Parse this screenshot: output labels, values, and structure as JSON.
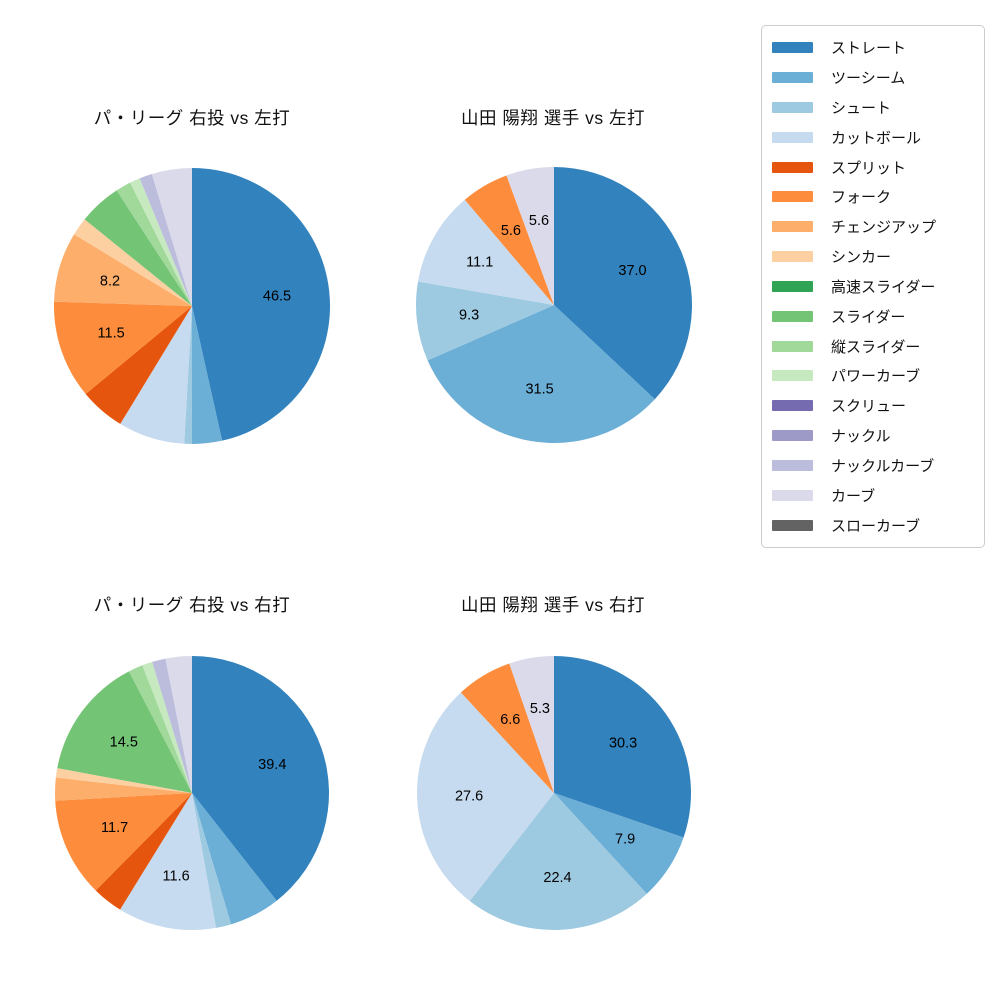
{
  "legend": {
    "position": "right",
    "items": [
      {
        "label": "ストレート",
        "color": "#3182bd"
      },
      {
        "label": "ツーシーム",
        "color": "#6baed6"
      },
      {
        "label": "シュート",
        "color": "#9ecae1"
      },
      {
        "label": "カットボール",
        "color": "#c6dbef"
      },
      {
        "label": "スプリット",
        "color": "#e6550d"
      },
      {
        "label": "フォーク",
        "color": "#fd8d3c"
      },
      {
        "label": "チェンジアップ",
        "color": "#fdae6b"
      },
      {
        "label": "シンカー",
        "color": "#fdd0a2"
      },
      {
        "label": "高速スライダー",
        "color": "#31a354"
      },
      {
        "label": "スライダー",
        "color": "#74c476"
      },
      {
        "label": "縦スライダー",
        "color": "#a1d99b"
      },
      {
        "label": "パワーカーブ",
        "color": "#c7e9c0"
      },
      {
        "label": "スクリュー",
        "color": "#756bb1"
      },
      {
        "label": "ナックル",
        "color": "#9e9ac8"
      },
      {
        "label": "ナックルカーブ",
        "color": "#bcbddc"
      },
      {
        "label": "カーブ",
        "color": "#dadaeb"
      },
      {
        "label": "スローカーブ",
        "color": "#636363"
      }
    ]
  },
  "chart_data": [
    {
      "type": "pie",
      "title": "パ・リーグ 右投 vs 左打",
      "start_angle": 90,
      "direction": "clockwise",
      "legend_position": "right",
      "slices": [
        {
          "pitch": "ストレート",
          "value": 46.5,
          "shown_label": "46.5"
        },
        {
          "pitch": "ツーシーム",
          "value": 3.5,
          "shown_label": ""
        },
        {
          "pitch": "シュート",
          "value": 0.9,
          "shown_label": ""
        },
        {
          "pitch": "カットボール",
          "value": 7.8,
          "shown_label": ""
        },
        {
          "pitch": "スプリット",
          "value": 5.3,
          "shown_label": ""
        },
        {
          "pitch": "フォーク",
          "value": 11.5,
          "shown_label": "11.5"
        },
        {
          "pitch": "チェンジアップ",
          "value": 8.2,
          "shown_label": "8.2"
        },
        {
          "pitch": "シンカー",
          "value": 2.1,
          "shown_label": ""
        },
        {
          "pitch": "スライダー",
          "value": 5.0,
          "shown_label": ""
        },
        {
          "pitch": "縦スライダー",
          "value": 1.8,
          "shown_label": ""
        },
        {
          "pitch": "パワーカーブ",
          "value": 1.2,
          "shown_label": ""
        },
        {
          "pitch": "ナックルカーブ",
          "value": 1.5,
          "shown_label": ""
        },
        {
          "pitch": "カーブ",
          "value": 4.7,
          "shown_label": ""
        }
      ]
    },
    {
      "type": "pie",
      "title": "山田 陽翔 選手 vs 左打",
      "start_angle": 90,
      "direction": "clockwise",
      "slices": [
        {
          "pitch": "ストレート",
          "value": 37.0,
          "shown_label": "37.0"
        },
        {
          "pitch": "ツーシーム",
          "value": 31.5,
          "shown_label": "31.5"
        },
        {
          "pitch": "シュート",
          "value": 9.3,
          "shown_label": "9.3"
        },
        {
          "pitch": "カットボール",
          "value": 11.1,
          "shown_label": "11.1"
        },
        {
          "pitch": "フォーク",
          "value": 5.6,
          "shown_label": "5.6"
        },
        {
          "pitch": "カーブ",
          "value": 5.6,
          "shown_label": "5.6"
        }
      ]
    },
    {
      "type": "pie",
      "title": "パ・リーグ 右投 vs 右打",
      "start_angle": 90,
      "direction": "clockwise",
      "slices": [
        {
          "pitch": "ストレート",
          "value": 39.4,
          "shown_label": "39.4"
        },
        {
          "pitch": "ツーシーム",
          "value": 6.0,
          "shown_label": ""
        },
        {
          "pitch": "シュート",
          "value": 1.8,
          "shown_label": ""
        },
        {
          "pitch": "カットボール",
          "value": 11.6,
          "shown_label": "11.6"
        },
        {
          "pitch": "スプリット",
          "value": 3.6,
          "shown_label": ""
        },
        {
          "pitch": "フォーク",
          "value": 11.7,
          "shown_label": "11.7"
        },
        {
          "pitch": "チェンジアップ",
          "value": 2.7,
          "shown_label": ""
        },
        {
          "pitch": "シンカー",
          "value": 1.1,
          "shown_label": ""
        },
        {
          "pitch": "スライダー",
          "value": 14.5,
          "shown_label": "14.5"
        },
        {
          "pitch": "縦スライダー",
          "value": 1.7,
          "shown_label": ""
        },
        {
          "pitch": "パワーカーブ",
          "value": 1.2,
          "shown_label": ""
        },
        {
          "pitch": "ナックルカーブ",
          "value": 1.6,
          "shown_label": ""
        },
        {
          "pitch": "カーブ",
          "value": 3.1,
          "shown_label": ""
        }
      ]
    },
    {
      "type": "pie",
      "title": "山田 陽翔 選手 vs 右打",
      "start_angle": 90,
      "direction": "clockwise",
      "slices": [
        {
          "pitch": "ストレート",
          "value": 30.3,
          "shown_label": "30.3"
        },
        {
          "pitch": "ツーシーム",
          "value": 7.9,
          "shown_label": "7.9"
        },
        {
          "pitch": "シュート",
          "value": 22.4,
          "shown_label": "22.4"
        },
        {
          "pitch": "カットボール",
          "value": 27.6,
          "shown_label": "27.6"
        },
        {
          "pitch": "フォーク",
          "value": 6.6,
          "shown_label": "6.6"
        },
        {
          "pitch": "カーブ",
          "value": 5.3,
          "shown_label": "5.3"
        }
      ]
    }
  ]
}
